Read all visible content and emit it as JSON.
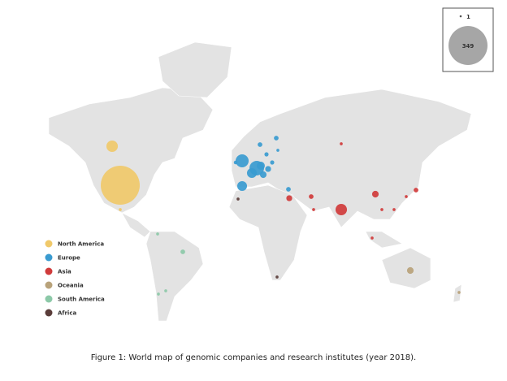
{
  "map": {
    "regions": [
      {
        "name": "North America",
        "color": "#f0c96a"
      },
      {
        "name": "Europe",
        "color": "#3a9bd0"
      },
      {
        "name": "Asia",
        "color": "#d03b3b"
      },
      {
        "name": "Oceania",
        "color": "#b8a27a"
      },
      {
        "name": "South America",
        "color": "#8cc9a8"
      },
      {
        "name": "Africa",
        "color": "#5a3d3a"
      }
    ],
    "size_legend": [
      1,
      349
    ],
    "bubbles": [
      {
        "region": 0,
        "value": 349
      },
      {
        "region": 0,
        "value": 30
      },
      {
        "region": 0,
        "value": 2
      },
      {
        "region": 1,
        "value": 39
      },
      {
        "region": 1,
        "value": 49
      },
      {
        "region": 1,
        "value": 22
      },
      {
        "region": 1,
        "value": 15
      },
      {
        "region": 1,
        "value": 22
      },
      {
        "region": 1,
        "value": 10
      },
      {
        "region": 1,
        "value": 8
      },
      {
        "region": 1,
        "value": 5
      },
      {
        "region": 1,
        "value": 5
      },
      {
        "region": 1,
        "value": 4
      },
      {
        "region": 1,
        "value": 3
      },
      {
        "region": 1,
        "value": 5
      },
      {
        "region": 1,
        "value": 4
      },
      {
        "region": 1,
        "value": 2
      },
      {
        "region": 2,
        "value": 30
      },
      {
        "region": 2,
        "value": 10
      },
      {
        "region": 2,
        "value": 5
      },
      {
        "region": 2,
        "value": 2
      },
      {
        "region": 2,
        "value": 2
      },
      {
        "region": 2,
        "value": 5
      },
      {
        "region": 2,
        "value": 8
      },
      {
        "region": 2,
        "value": 2
      },
      {
        "region": 2,
        "value": 2
      },
      {
        "region": 2,
        "value": 2
      },
      {
        "region": 2,
        "value": 2
      },
      {
        "region": 3,
        "value": 10
      },
      {
        "region": 3,
        "value": 2
      },
      {
        "region": 4,
        "value": 5
      },
      {
        "region": 4,
        "value": 2
      },
      {
        "region": 4,
        "value": 2
      },
      {
        "region": 4,
        "value": 2
      },
      {
        "region": 5,
        "value": 2
      },
      {
        "region": 5,
        "value": 2
      }
    ],
    "caption": "Figure 1: World map of genomic companies and research institutes (year 2018)."
  }
}
